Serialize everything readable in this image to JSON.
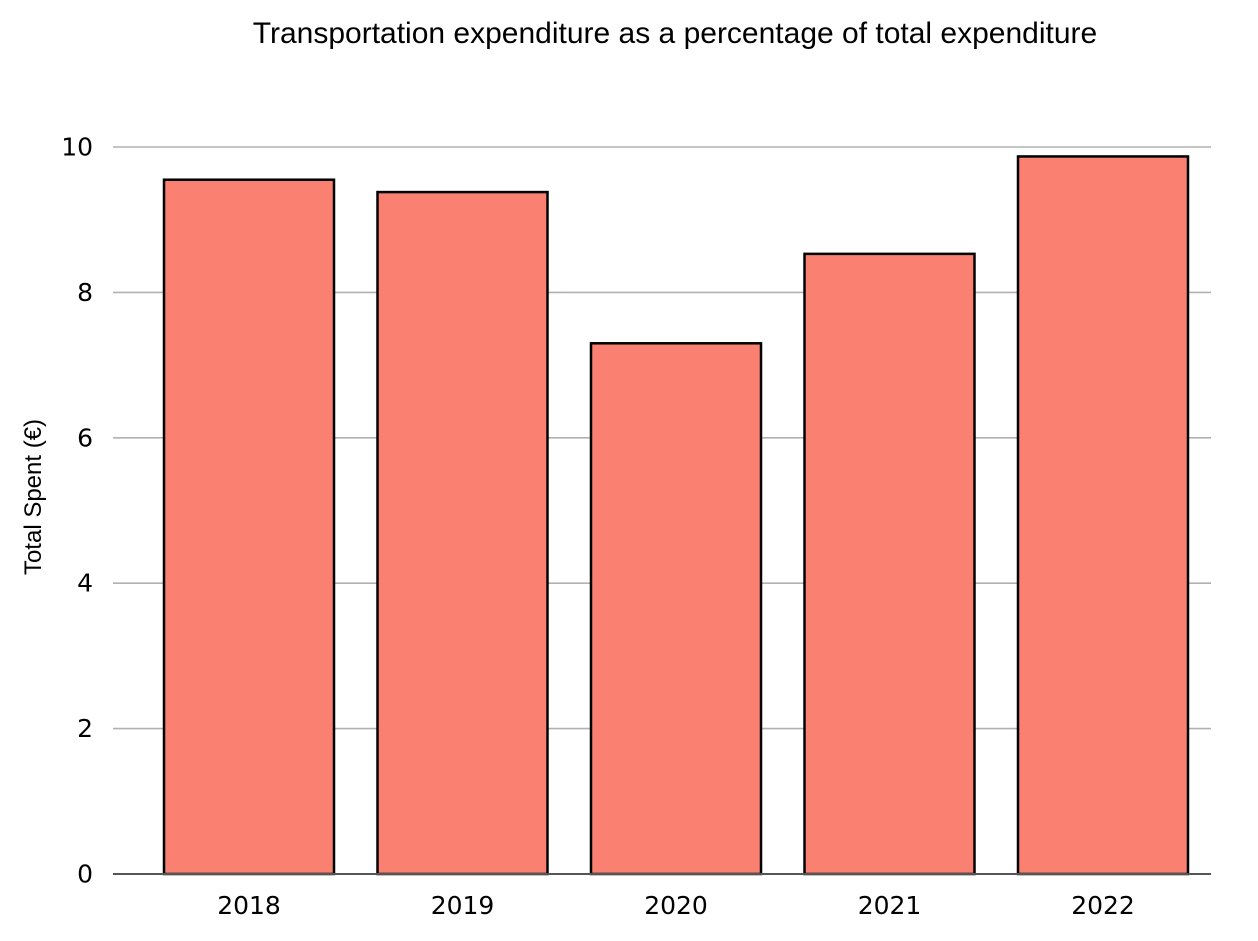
{
  "chart_data": {
    "type": "bar",
    "title": "Transportation expenditure as a percentage of total expenditure",
    "xlabel": "",
    "ylabel": "Total Spent (€)",
    "categories": [
      "2018",
      "2019",
      "2020",
      "2021",
      "2022"
    ],
    "values": [
      9.55,
      9.38,
      7.3,
      8.53,
      9.87
    ],
    "ylim": [
      0,
      10.3
    ],
    "yticks": [
      0,
      2,
      4,
      6,
      8,
      10
    ],
    "grid": "horizontal",
    "legend": "none",
    "colors": {
      "bar_fill": "#fa8072",
      "bar_edge": "#000000",
      "grid": "#b0b0b0",
      "axis": "#555555"
    }
  }
}
